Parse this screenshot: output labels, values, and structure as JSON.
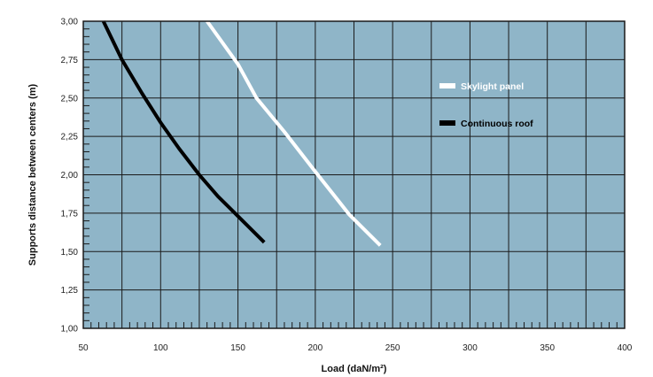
{
  "chart_data": {
    "type": "line",
    "xlabel": "Load (daN/m²)",
    "ylabel": "Supports distance between centers (m)",
    "xlim": [
      50,
      400
    ],
    "ylim": [
      1.0,
      3.0
    ],
    "x_ticks": [
      "50",
      "100",
      "150",
      "200",
      "250",
      "300",
      "350",
      "400"
    ],
    "y_ticks": [
      "1,00",
      "1,25",
      "1,50",
      "1,75",
      "2,00",
      "2,25",
      "2,50",
      "2,75",
      "3,00"
    ],
    "grid": true,
    "legend_position": "right",
    "plot_background": "#8fb5c8",
    "series": [
      {
        "name": "Skylight panel",
        "color": "#ffffff",
        "x": [
          130,
          150,
          162,
          180,
          200,
          222,
          242
        ],
        "y": [
          3.0,
          2.72,
          2.5,
          2.28,
          2.02,
          1.74,
          1.54
        ]
      },
      {
        "name": "Continuous roof",
        "color": "#000000",
        "x": [
          63,
          75,
          88,
          100,
          112,
          125,
          137,
          150,
          167
        ],
        "y": [
          3.0,
          2.75,
          2.53,
          2.34,
          2.17,
          2.0,
          1.86,
          1.73,
          1.56
        ]
      }
    ]
  }
}
